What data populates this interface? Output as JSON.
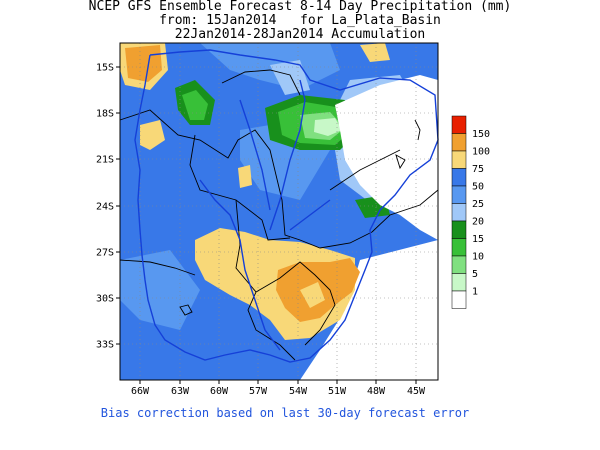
{
  "title": {
    "line1": "NCEP GFS Ensemble Forecast 8-14 Day Precipitation (mm)",
    "line2": "from: 15Jan2014   for La_Plata_Basin",
    "line3": "22Jan2014-28Jan2014 Accumulation"
  },
  "axes": {
    "lat_labels": [
      "15S",
      "18S",
      "21S",
      "24S",
      "27S",
      "30S",
      "33S"
    ],
    "lon_labels": [
      "66W",
      "63W",
      "60W",
      "57W",
      "54W",
      "51W",
      "48W",
      "45W"
    ]
  },
  "legend": {
    "entries": [
      {
        "label": "150",
        "color": "#e82000"
      },
      {
        "label": "100",
        "color": "#f0a030"
      },
      {
        "label": "75",
        "color": "#f8d878"
      },
      {
        "label": "50",
        "color": "#3878e8"
      },
      {
        "label": "25",
        "color": "#5898f0"
      },
      {
        "label": "20",
        "color": "#a0c8f8"
      },
      {
        "label": "15",
        "color": "#18901c"
      },
      {
        "label": "10",
        "color": "#38c038"
      },
      {
        "label": "5",
        "color": "#80e080"
      },
      {
        "label": "1",
        "color": "#c8f8c8"
      },
      {
        "label": "",
        "color": "#ffffff"
      }
    ]
  },
  "footnote": "Bias correction based on last 30-day forecast error"
}
